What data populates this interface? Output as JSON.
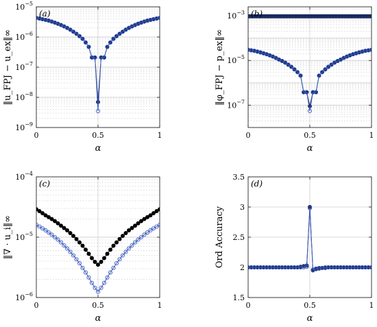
{
  "chart_data": [
    {
      "panel": "(a)",
      "type": "line",
      "xlabel": "α",
      "ylabel": "‖u_FPJ − u_ex‖∞",
      "yscale": "log",
      "xlim": [
        0,
        1
      ],
      "ylim_exp": [
        -9,
        -5
      ],
      "xticks": [
        "0",
        "0.5",
        "1"
      ],
      "yticks": [
        "10^-9",
        "10^-8",
        "10^-7",
        "10^-6",
        "10^-5"
      ],
      "grid": true,
      "series": [
        {
          "style": "filled",
          "color": "#1a2a5e",
          "x": [
            0,
            0.025,
            0.05,
            0.075,
            0.1,
            0.125,
            0.15,
            0.175,
            0.2,
            0.225,
            0.25,
            0.275,
            0.3,
            0.325,
            0.35,
            0.375,
            0.4,
            0.425,
            0.45,
            0.475,
            0.5,
            0.525,
            0.55,
            0.575,
            0.6,
            0.625,
            0.65,
            0.675,
            0.7,
            0.725,
            0.75,
            0.775,
            0.8,
            0.825,
            0.85,
            0.875,
            0.9,
            0.925,
            0.95,
            0.975,
            1
          ],
          "y": [
            4.3e-06,
            4.1e-06,
            3.9e-06,
            3.7e-06,
            3.5e-06,
            3.25e-06,
            3e-06,
            2.75e-06,
            2.5e-06,
            2.25e-06,
            2e-06,
            1.75e-06,
            1.5e-06,
            1.28e-06,
            1.07e-06,
            8.7e-07,
            6.6e-07,
            4.7e-07,
            2.1e-07,
            2.1e-07,
            7e-09,
            2.1e-07,
            2.1e-07,
            4.7e-07,
            6.6e-07,
            8.7e-07,
            1.07e-06,
            1.28e-06,
            1.5e-06,
            1.75e-06,
            2e-06,
            2.25e-06,
            2.5e-06,
            2.75e-06,
            3e-06,
            3.25e-06,
            3.5e-06,
            3.7e-06,
            3.9e-06,
            4.1e-06,
            4.3e-06
          ]
        },
        {
          "style": "open",
          "color": "#3a5bbf",
          "x": [
            0,
            0.025,
            0.05,
            0.075,
            0.1,
            0.125,
            0.15,
            0.175,
            0.2,
            0.225,
            0.25,
            0.275,
            0.3,
            0.325,
            0.35,
            0.375,
            0.4,
            0.425,
            0.45,
            0.475,
            0.5,
            0.525,
            0.55,
            0.575,
            0.6,
            0.625,
            0.65,
            0.675,
            0.7,
            0.725,
            0.75,
            0.775,
            0.8,
            0.825,
            0.85,
            0.875,
            0.9,
            0.925,
            0.95,
            0.975,
            1
          ],
          "y": [
            4.3e-06,
            4.1e-06,
            3.9e-06,
            3.7e-06,
            3.5e-06,
            3.25e-06,
            3e-06,
            2.75e-06,
            2.5e-06,
            2.25e-06,
            2e-06,
            1.75e-06,
            1.5e-06,
            1.28e-06,
            1.07e-06,
            8.7e-07,
            6.6e-07,
            4.7e-07,
            2.1e-07,
            2.1e-07,
            3.5e-09,
            2.1e-07,
            2.1e-07,
            4.7e-07,
            6.6e-07,
            8.7e-07,
            1.07e-06,
            1.28e-06,
            1.5e-06,
            1.75e-06,
            2e-06,
            2.25e-06,
            2.5e-06,
            2.75e-06,
            3e-06,
            3.25e-06,
            3.5e-06,
            3.7e-06,
            3.9e-06,
            4.1e-06,
            4.3e-06
          ]
        }
      ]
    },
    {
      "panel": "(b)",
      "type": "line",
      "xlabel": "α",
      "ylabel": "‖φ_FPJ − p_ex‖∞",
      "yscale": "log",
      "xlim": [
        0,
        1
      ],
      "ylim_exp": [
        -8,
        -2.6
      ],
      "xticks": [
        "0",
        "0.5",
        "1"
      ],
      "yticks": [
        "10^-7",
        "10^-5",
        "10^-3"
      ],
      "grid": true,
      "series": [
        {
          "style": "square",
          "color": "#1a2a5e",
          "x": [
            0,
            0.025,
            0.05,
            0.075,
            0.1,
            0.125,
            0.15,
            0.175,
            0.2,
            0.225,
            0.25,
            0.275,
            0.3,
            0.325,
            0.35,
            0.375,
            0.4,
            0.425,
            0.45,
            0.475,
            0.5,
            0.525,
            0.55,
            0.575,
            0.6,
            0.625,
            0.65,
            0.675,
            0.7,
            0.725,
            0.75,
            0.775,
            0.8,
            0.825,
            0.85,
            0.875,
            0.9,
            0.925,
            0.95,
            0.975,
            1
          ],
          "y": [
            0.00095,
            0.00095,
            0.00095,
            0.00095,
            0.00095,
            0.00095,
            0.00095,
            0.00095,
            0.00095,
            0.00095,
            0.00095,
            0.00095,
            0.00095,
            0.00095,
            0.00095,
            0.00095,
            0.00095,
            0.00095,
            0.00095,
            0.00095,
            0.00095,
            0.00095,
            0.00095,
            0.00095,
            0.00095,
            0.00095,
            0.00095,
            0.00095,
            0.00095,
            0.00095,
            0.00095,
            0.00095,
            0.00095,
            0.00095,
            0.00095,
            0.00095,
            0.00095,
            0.00095,
            0.00095,
            0.00095,
            0.00095
          ]
        },
        {
          "style": "filled",
          "color": "#1a2a5e",
          "x": [
            0,
            0.025,
            0.05,
            0.075,
            0.1,
            0.125,
            0.15,
            0.175,
            0.2,
            0.225,
            0.25,
            0.275,
            0.3,
            0.325,
            0.35,
            0.375,
            0.4,
            0.425,
            0.45,
            0.475,
            0.5,
            0.525,
            0.55,
            0.575,
            0.6,
            0.625,
            0.65,
            0.675,
            0.7,
            0.725,
            0.75,
            0.775,
            0.8,
            0.825,
            0.85,
            0.875,
            0.9,
            0.925,
            0.95,
            0.975,
            1
          ],
          "y": [
            3e-05,
            2.85e-05,
            2.7e-05,
            2.5e-05,
            2.3e-05,
            2.1e-05,
            1.9e-05,
            1.7e-05,
            1.5e-05,
            1.3e-05,
            1.1e-05,
            9.5e-06,
            8e-06,
            6.5e-06,
            5.2e-06,
            4e-06,
            3e-06,
            2.1e-06,
            3.8e-07,
            3.8e-07,
            9e-08,
            3.8e-07,
            3.8e-07,
            2.1e-06,
            3e-06,
            4e-06,
            5.2e-06,
            6.5e-06,
            8e-06,
            9.5e-06,
            1.1e-05,
            1.3e-05,
            1.5e-05,
            1.7e-05,
            1.9e-05,
            2.1e-05,
            2.3e-05,
            2.5e-05,
            2.7e-05,
            2.85e-05,
            3e-05
          ]
        },
        {
          "style": "open",
          "color": "#3a5bbf",
          "x": [
            0,
            0.025,
            0.05,
            0.075,
            0.1,
            0.125,
            0.15,
            0.175,
            0.2,
            0.225,
            0.25,
            0.275,
            0.3,
            0.325,
            0.35,
            0.375,
            0.4,
            0.425,
            0.45,
            0.475,
            0.5,
            0.525,
            0.55,
            0.575,
            0.6,
            0.625,
            0.65,
            0.675,
            0.7,
            0.725,
            0.75,
            0.775,
            0.8,
            0.825,
            0.85,
            0.875,
            0.9,
            0.925,
            0.95,
            0.975,
            1
          ],
          "y": [
            3e-05,
            2.85e-05,
            2.7e-05,
            2.5e-05,
            2.3e-05,
            2.1e-05,
            1.9e-05,
            1.7e-05,
            1.5e-05,
            1.3e-05,
            1.1e-05,
            9.5e-06,
            8e-06,
            6.5e-06,
            5.2e-06,
            4e-06,
            3e-06,
            2.1e-06,
            3.8e-07,
            3.8e-07,
            5.5e-08,
            3.8e-07,
            3.8e-07,
            2.1e-06,
            3e-06,
            4e-06,
            5.2e-06,
            6.5e-06,
            8e-06,
            9.5e-06,
            1.1e-05,
            1.3e-05,
            1.5e-05,
            1.7e-05,
            1.9e-05,
            2.1e-05,
            2.3e-05,
            2.5e-05,
            2.7e-05,
            2.85e-05,
            3e-05
          ]
        }
      ]
    },
    {
      "panel": "(c)",
      "type": "line",
      "xlabel": "α",
      "ylabel": "‖∇ · u_i‖∞",
      "yscale": "log",
      "xlim": [
        0,
        1
      ],
      "ylim_exp": [
        -6,
        -4
      ],
      "xticks": [
        "0",
        "0.5",
        "1"
      ],
      "yticks": [
        "10^-6",
        "10^-5",
        "10^-4"
      ],
      "grid": true,
      "series": [
        {
          "style": "filled",
          "color": "#000000",
          "x": [
            0,
            0.025,
            0.05,
            0.075,
            0.1,
            0.125,
            0.15,
            0.175,
            0.2,
            0.225,
            0.25,
            0.275,
            0.3,
            0.325,
            0.35,
            0.375,
            0.4,
            0.425,
            0.45,
            0.475,
            0.5,
            0.525,
            0.55,
            0.575,
            0.6,
            0.625,
            0.65,
            0.675,
            0.7,
            0.725,
            0.75,
            0.775,
            0.8,
            0.825,
            0.85,
            0.875,
            0.9,
            0.925,
            0.95,
            0.975,
            1
          ],
          "y": [
            2.9e-05,
            2.7e-05,
            2.5e-05,
            2.3e-05,
            2.15e-05,
            2e-05,
            1.85e-05,
            1.7e-05,
            1.55e-05,
            1.42e-05,
            1.3e-05,
            1.17e-05,
            1.05e-05,
            9.3e-06,
            8.2e-06,
            7.2e-06,
            6.2e-06,
            5.3e-06,
            4.5e-06,
            3.9e-06,
            3.5e-06,
            3.9e-06,
            4.5e-06,
            5.3e-06,
            6.2e-06,
            7.2e-06,
            8.2e-06,
            9.3e-06,
            1.05e-05,
            1.17e-05,
            1.3e-05,
            1.42e-05,
            1.55e-05,
            1.7e-05,
            1.85e-05,
            2e-05,
            2.15e-05,
            2.3e-05,
            2.5e-05,
            2.7e-05,
            2.9e-05
          ]
        },
        {
          "style": "open",
          "color": "#3a5bbf",
          "x": [
            0,
            0.025,
            0.05,
            0.075,
            0.1,
            0.125,
            0.15,
            0.175,
            0.2,
            0.225,
            0.25,
            0.275,
            0.3,
            0.325,
            0.35,
            0.375,
            0.4,
            0.425,
            0.45,
            0.475,
            0.5,
            0.525,
            0.55,
            0.575,
            0.6,
            0.625,
            0.65,
            0.675,
            0.7,
            0.725,
            0.75,
            0.775,
            0.8,
            0.825,
            0.85,
            0.875,
            0.9,
            0.925,
            0.95,
            0.975,
            1
          ],
          "y": [
            1.6e-05,
            1.5e-05,
            1.4e-05,
            1.3e-05,
            1.2e-05,
            1.1e-05,
            1e-05,
            9.1e-06,
            8.2e-06,
            7.3e-06,
            6.5e-06,
            5.7e-06,
            5e-06,
            4.3e-06,
            3.7e-06,
            3.1e-06,
            2.6e-06,
            2.15e-06,
            1.75e-06,
            1.45e-06,
            1.25e-06,
            1.45e-06,
            1.75e-06,
            2.15e-06,
            2.6e-06,
            3.1e-06,
            3.7e-06,
            4.3e-06,
            5e-06,
            5.7e-06,
            6.5e-06,
            7.3e-06,
            8.2e-06,
            9.1e-06,
            1e-05,
            1.1e-05,
            1.2e-05,
            1.3e-05,
            1.4e-05,
            1.5e-05,
            1.6e-05
          ]
        }
      ]
    },
    {
      "panel": "(d)",
      "type": "line",
      "xlabel": "α",
      "ylabel": "Ord Accuracy",
      "yscale": "linear",
      "xlim": [
        0,
        1
      ],
      "ylim": [
        1.5,
        3.5
      ],
      "xticks": [
        "0",
        "0.5",
        "1"
      ],
      "yticks": [
        "1.5",
        "2",
        "2.5",
        "3",
        "3.5"
      ],
      "grid": true,
      "series": [
        {
          "style": "filled",
          "color": "#1a2a5e",
          "x": [
            0,
            0.025,
            0.05,
            0.075,
            0.1,
            0.125,
            0.15,
            0.175,
            0.2,
            0.225,
            0.25,
            0.275,
            0.3,
            0.325,
            0.35,
            0.375,
            0.4,
            0.425,
            0.45,
            0.475,
            0.5,
            0.525,
            0.55,
            0.575,
            0.6,
            0.625,
            0.65,
            0.675,
            0.7,
            0.725,
            0.75,
            0.775,
            0.8,
            0.825,
            0.85,
            0.875,
            0.9,
            0.925,
            0.95,
            0.975,
            1
          ],
          "y": [
            2.0,
            2.0,
            2.0,
            2.0,
            2.0,
            2.0,
            2.0,
            2.0,
            2.0,
            2.0,
            2.0,
            2.0,
            2.0,
            2.0,
            2.0,
            2.0,
            2.0,
            2.01,
            2.02,
            2.03,
            3.0,
            1.95,
            1.97,
            1.98,
            1.99,
            1.99,
            2.0,
            2.0,
            2.0,
            2.0,
            2.0,
            2.0,
            2.0,
            2.0,
            2.0,
            2.0,
            2.0,
            2.0,
            2.0,
            2.0,
            2.0
          ]
        },
        {
          "style": "open",
          "color": "#3a5bbf",
          "x": [
            0,
            0.025,
            0.05,
            0.075,
            0.1,
            0.125,
            0.15,
            0.175,
            0.2,
            0.225,
            0.25,
            0.275,
            0.3,
            0.325,
            0.35,
            0.375,
            0.4,
            0.425,
            0.45,
            0.475,
            0.5,
            0.525,
            0.55,
            0.575,
            0.6,
            0.625,
            0.65,
            0.675,
            0.7,
            0.725,
            0.75,
            0.775,
            0.8,
            0.825,
            0.85,
            0.875,
            0.9,
            0.925,
            0.95,
            0.975,
            1
          ],
          "y": [
            2.0,
            2.0,
            2.0,
            2.0,
            2.0,
            2.0,
            2.0,
            2.0,
            2.0,
            2.0,
            2.0,
            2.0,
            2.0,
            2.0,
            2.0,
            2.0,
            2.0,
            2.0,
            2.0,
            2.01,
            2.98,
            1.96,
            1.98,
            1.99,
            1.99,
            2.0,
            2.0,
            2.0,
            2.0,
            2.0,
            2.0,
            2.0,
            2.0,
            2.0,
            2.0,
            2.0,
            2.0,
            2.0,
            2.0,
            2.0,
            2.0
          ]
        }
      ]
    }
  ]
}
